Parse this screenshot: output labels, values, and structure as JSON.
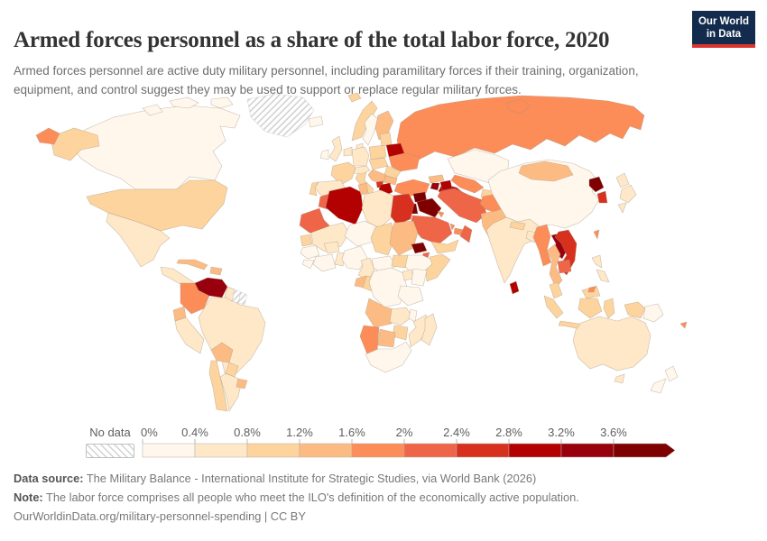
{
  "header": {
    "title": "Armed forces personnel as a share of the total labor force, 2020",
    "subtitle": "Armed forces personnel are active duty military personnel, including paramilitary forces if their training, organization, equipment, and control suggest they may be used to support or replace regular military forces.",
    "logo": {
      "line1": "Our World",
      "line2": "in Data",
      "bg_color": "#132c4e",
      "stripe_color": "#d8352f"
    }
  },
  "chart_data": {
    "type": "choropleth",
    "metric": "Armed forces personnel as a share of the total labor force",
    "year": 2020,
    "unit": "% of total labor force",
    "legend": {
      "no_data_label": "No data",
      "tick_labels": [
        "0%",
        "0.4%",
        "0.8%",
        "1.2%",
        "1.6%",
        "2%",
        "2.4%",
        "2.8%",
        "3.2%",
        "3.6%"
      ],
      "open_ended": true,
      "bins": [
        {
          "range": "0–0.4%",
          "color": "#fff7ec"
        },
        {
          "range": "0.4–0.8%",
          "color": "#fee8c8"
        },
        {
          "range": "0.8–1.2%",
          "color": "#fdd49e"
        },
        {
          "range": "1.2–1.6%",
          "color": "#fdbb84"
        },
        {
          "range": "1.6–2%",
          "color": "#fc8d59"
        },
        {
          "range": "2–2.4%",
          "color": "#ef6548"
        },
        {
          "range": "2.4–2.8%",
          "color": "#d7301f"
        },
        {
          "range": "2.8–3.2%",
          "color": "#b30000"
        },
        {
          "range": "3.2–3.6%",
          "color": "#99000d"
        },
        {
          "range": "3.6%+",
          "color": "#7f0000"
        }
      ]
    },
    "regions": {
      "greenland": {
        "name": "Greenland",
        "bin": null
      },
      "canada": {
        "name": "Canada",
        "bin": 1
      },
      "usa": {
        "name": "United States",
        "bin": 3
      },
      "russia": {
        "name": "Russia",
        "bin": 5
      },
      "mexico": {
        "name": "Mexico",
        "bin": 2
      },
      "central_america": {
        "name": "Central America",
        "bin": 2
      },
      "cuba": {
        "name": "Cuba",
        "bin": 4
      },
      "hispaniola": {
        "name": "Dominican Republic / Haiti",
        "bin": 4
      },
      "brazil": {
        "name": "Brazil",
        "bin": 2
      },
      "argentina": {
        "name": "Argentina",
        "bin": 2
      },
      "chile": {
        "name": "Chile",
        "bin": 3
      },
      "peru": {
        "name": "Peru",
        "bin": 2
      },
      "bolivia": {
        "name": "Bolivia",
        "bin": 4
      },
      "paraguay": {
        "name": "Paraguay",
        "bin": 3
      },
      "uruguay": {
        "name": "Uruguay",
        "bin": 4
      },
      "colombia": {
        "name": "Colombia",
        "bin": 5
      },
      "venezuela": {
        "name": "Venezuela",
        "bin": 9
      },
      "ecuador": {
        "name": "Ecuador",
        "bin": 4
      },
      "guyana": {
        "name": "Guyana",
        "bin": 2
      },
      "suriname": {
        "name": "Suriname",
        "bin": null
      },
      "french_guiana": {
        "name": "French Guiana",
        "bin": null
      },
      "iceland": {
        "name": "Iceland",
        "bin": 1
      },
      "norway": {
        "name": "Norway",
        "bin": 3
      },
      "sweden": {
        "name": "Sweden",
        "bin": 1
      },
      "finland": {
        "name": "Finland",
        "bin": 4
      },
      "denmark": {
        "name": "Denmark",
        "bin": 2
      },
      "uk": {
        "name": "United Kingdom",
        "bin": 2
      },
      "ireland": {
        "name": "Ireland",
        "bin": 1
      },
      "germany": {
        "name": "Germany",
        "bin": 2
      },
      "netherlands_belgium": {
        "name": "Netherlands / Belgium",
        "bin": 2
      },
      "poland": {
        "name": "Poland",
        "bin": 3
      },
      "baltics": {
        "name": "Baltic states",
        "bin": 3
      },
      "belarus": {
        "name": "Belarus",
        "bin": 8
      },
      "ukraine": {
        "name": "Ukraine",
        "bin": 5
      },
      "france": {
        "name": "France",
        "bin": 3
      },
      "spain": {
        "name": "Spain",
        "bin": 2
      },
      "portugal": {
        "name": "Portugal",
        "bin": 3
      },
      "italy": {
        "name": "Italy",
        "bin": 3
      },
      "alpine": {
        "name": "Switzerland / Austria",
        "bin": 2
      },
      "central_europe": {
        "name": "Czechia / Slovakia / Hungary",
        "bin": 3
      },
      "romania": {
        "name": "Romania",
        "bin": 3
      },
      "balkans": {
        "name": "Serbia / Western Balkans",
        "bin": 4
      },
      "macedonia_albania": {
        "name": "Albania / North Macedonia",
        "bin": 7
      },
      "bulgaria": {
        "name": "Bulgaria",
        "bin": 4
      },
      "greece": {
        "name": "Greece",
        "bin": 8
      },
      "cyprus": {
        "name": "Cyprus",
        "bin": 9
      },
      "kazakhstan": {
        "name": "Kazakhstan",
        "bin": 1
      },
      "uzbekistan": {
        "name": "Uzbekistan",
        "bin": 5
      },
      "turkmenistan": {
        "name": "Turkmenistan",
        "bin": 8
      },
      "kyrgyzstan": {
        "name": "Kyrgyzstan",
        "bin": 4
      },
      "tajikistan": {
        "name": "Tajikistan",
        "bin": 3
      },
      "turkey": {
        "name": "Turkey",
        "bin": 5
      },
      "georgia": {
        "name": "Georgia",
        "bin": 4
      },
      "armenia": {
        "name": "Armenia",
        "bin": 9
      },
      "azerbaijan": {
        "name": "Azerbaijan",
        "bin": 8
      },
      "syria": {
        "name": "Syria",
        "bin": 10
      },
      "iraq": {
        "name": "Iraq",
        "bin": 10
      },
      "jordan": {
        "name": "Jordan",
        "bin": 10
      },
      "israel_lebanon": {
        "name": "Israel / Lebanon",
        "bin": 8
      },
      "saudi_arabia": {
        "name": "Saudi Arabia",
        "bin": 6
      },
      "kuwait": {
        "name": "Kuwait",
        "bin": 5
      },
      "qatar": {
        "name": "Qatar",
        "bin": 5
      },
      "uae": {
        "name": "United Arab Emirates",
        "bin": 5
      },
      "oman": {
        "name": "Oman",
        "bin": 6
      },
      "yemen": {
        "name": "Yemen",
        "bin": 3
      },
      "iran": {
        "name": "Iran",
        "bin": 6
      },
      "afghanistan": {
        "name": "Afghanistan",
        "bin": 5
      },
      "pakistan": {
        "name": "Pakistan",
        "bin": 4
      },
      "china": {
        "name": "China",
        "bin": 1
      },
      "mongolia": {
        "name": "Mongolia",
        "bin": 4
      },
      "north_korea": {
        "name": "North Korea",
        "bin": 10
      },
      "south_korea": {
        "name": "South Korea",
        "bin": 7
      },
      "japan": {
        "name": "Japan",
        "bin": 2
      },
      "taiwan": {
        "name": "Taiwan",
        "bin": 5
      },
      "india": {
        "name": "India",
        "bin": 2
      },
      "nepal": {
        "name": "Nepal",
        "bin": 3
      },
      "bangladesh": {
        "name": "Bangladesh",
        "bin": 2
      },
      "sri_lanka": {
        "name": "Sri Lanka",
        "bin": 8
      },
      "myanmar": {
        "name": "Myanmar",
        "bin": 5
      },
      "laos": {
        "name": "Laos",
        "bin": 9
      },
      "vietnam": {
        "name": "Vietnam",
        "bin": 7
      },
      "thailand": {
        "name": "Thailand",
        "bin": 4
      },
      "cambodia": {
        "name": "Cambodia",
        "bin": 6
      },
      "malaysia": {
        "name": "Malaysia",
        "bin": 3
      },
      "east_malaysia": {
        "name": "Malaysia (Borneo)",
        "bin": 3
      },
      "brunei": {
        "name": "Brunei",
        "bin": 5
      },
      "indonesia": {
        "name": "Indonesia",
        "bin": 3
      },
      "png": {
        "name": "Papua New Guinea",
        "bin": 1
      },
      "philippines": {
        "name": "Philippines",
        "bin": 2
      },
      "australia": {
        "name": "Australia",
        "bin": 2
      },
      "new_zealand": {
        "name": "New Zealand",
        "bin": 1
      },
      "fiji": {
        "name": "Fiji",
        "bin": 5
      },
      "morocco": {
        "name": "Morocco",
        "bin": 6
      },
      "algeria": {
        "name": "Algeria",
        "bin": 8
      },
      "tunisia": {
        "name": "Tunisia",
        "bin": 4
      },
      "libya": {
        "name": "Libya",
        "bin": 2
      },
      "egypt": {
        "name": "Egypt",
        "bin": 7
      },
      "mauritania": {
        "name": "Mauritania",
        "bin": 6
      },
      "mali": {
        "name": "Mali",
        "bin": 2
      },
      "niger": {
        "name": "Niger",
        "bin": 1
      },
      "chad": {
        "name": "Chad",
        "bin": 3
      },
      "sudan": {
        "name": "Sudan",
        "bin": 4
      },
      "eritrea": {
        "name": "Eritrea",
        "bin": 10
      },
      "djibouti": {
        "name": "Djibouti",
        "bin": 6
      },
      "ethiopia": {
        "name": "Ethiopia",
        "bin": 1
      },
      "somalia": {
        "name": "Somalia",
        "bin": 3
      },
      "senegal": {
        "name": "Senegal",
        "bin": 3
      },
      "guinea": {
        "name": "Guinea",
        "bin": 1
      },
      "sierra_liberia": {
        "name": "Sierra Leone / Liberia",
        "bin": 1
      },
      "ivory_ghana": {
        "name": "Côte d'Ivoire / Ghana",
        "bin": 1
      },
      "burkina": {
        "name": "Burkina Faso",
        "bin": 2
      },
      "togo_benin": {
        "name": "Togo / Benin",
        "bin": 2
      },
      "nigeria": {
        "name": "Nigeria",
        "bin": 1
      },
      "cameroon": {
        "name": "Cameroon",
        "bin": 2
      },
      "car": {
        "name": "Central African Republic",
        "bin": 1
      },
      "south_sudan": {
        "name": "South Sudan",
        "bin": 3
      },
      "gabon": {
        "name": "Gabon",
        "bin": 4
      },
      "congo": {
        "name": "Congo",
        "bin": 3
      },
      "drc": {
        "name": "Democratic Republic of Congo",
        "bin": 1
      },
      "uganda": {
        "name": "Uganda",
        "bin": 2
      },
      "kenya": {
        "name": "Kenya",
        "bin": 1
      },
      "tanzania": {
        "name": "Tanzania",
        "bin": 1
      },
      "angola": {
        "name": "Angola",
        "bin": 4
      },
      "zambia": {
        "name": "Zambia",
        "bin": 2
      },
      "malawi": {
        "name": "Malawi",
        "bin": 1
      },
      "mozambique": {
        "name": "Mozambique",
        "bin": 2
      },
      "zimbabwe": {
        "name": "Zimbabwe",
        "bin": 3
      },
      "botswana": {
        "name": "Botswana",
        "bin": 4
      },
      "namibia": {
        "name": "Namibia",
        "bin": 5
      },
      "south_africa": {
        "name": "South Africa",
        "bin": 1
      },
      "madagascar": {
        "name": "Madagascar",
        "bin": 2
      }
    }
  },
  "footer": {
    "source_label": "Data source:",
    "source_text": "The Military Balance - International Institute for Strategic Studies, via World Bank (2026)",
    "note_label": "Note:",
    "note_text": "The labor force comprises all people who meet the ILO's definition of the economically active population.",
    "citation": "OurWorldinData.org/military-personnel-spending | CC BY"
  }
}
